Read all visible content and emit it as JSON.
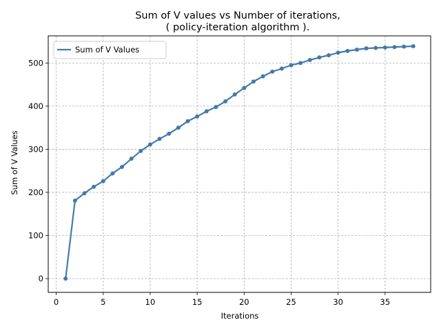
{
  "chart_data": {
    "type": "line",
    "title_line1": "Sum of V values vs Number of iterations,",
    "title_line2": "( policy-iteration algorithm ).",
    "xlabel": "Iterations",
    "ylabel": "Sum of V Values",
    "xlim": [
      -0.85,
      39.85
    ],
    "ylim": [
      -32,
      563
    ],
    "xticks": [
      0,
      5,
      10,
      15,
      20,
      25,
      30,
      35
    ],
    "yticks": [
      0,
      100,
      200,
      300,
      400,
      500
    ],
    "grid": true,
    "legend_position": "top-left",
    "series": [
      {
        "name": "Sum of V Values",
        "color": "#4479ab",
        "x": [
          1,
          2,
          3,
          4,
          5,
          6,
          7,
          8,
          9,
          10,
          11,
          12,
          13,
          14,
          15,
          16,
          17,
          18,
          19,
          20,
          21,
          22,
          23,
          24,
          25,
          26,
          27,
          28,
          29,
          30,
          31,
          32,
          33,
          34,
          35,
          36,
          37,
          38
        ],
        "y": [
          0,
          181,
          198,
          213,
          226,
          244,
          259,
          278,
          296,
          311,
          324,
          336,
          350,
          365,
          376,
          388,
          398,
          411,
          427,
          442,
          457,
          469,
          480,
          487,
          495,
          500,
          507,
          513,
          518,
          524,
          528,
          531,
          534,
          535,
          536,
          537,
          538,
          539
        ]
      }
    ]
  }
}
